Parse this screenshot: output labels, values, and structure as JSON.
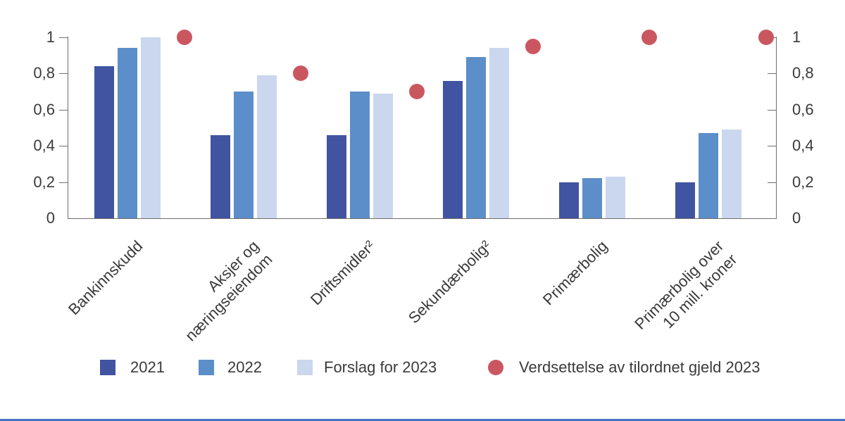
{
  "chart_data": {
    "type": "bar",
    "title": "",
    "categories": [
      "Bankinnskudd",
      "Aksjer og\nnæringseiendom",
      "Driftsmidler²",
      "Sekundærbolig²",
      "Primærbolig",
      "Primærbolig over\n10 mill. kroner"
    ],
    "series": [
      {
        "name": "2021",
        "type": "bar",
        "color": "#4154a1",
        "values": [
          0.84,
          0.46,
          0.46,
          0.76,
          0.2,
          0.2
        ]
      },
      {
        "name": "2022",
        "type": "bar",
        "color": "#5c8ec9",
        "values": [
          0.94,
          0.7,
          0.7,
          0.89,
          0.22,
          0.47
        ]
      },
      {
        "name": "Forslag for 2023",
        "type": "bar",
        "color": "#cbd7ee",
        "values": [
          1.0,
          0.79,
          0.69,
          0.94,
          0.23,
          0.49
        ]
      },
      {
        "name": "Verdsettelse av tilordnet gjeld 2023",
        "type": "scatter",
        "color": "#ca5760",
        "values": [
          1.0,
          0.8,
          0.7,
          0.95,
          1.0,
          1.0
        ]
      }
    ],
    "ylim": [
      0,
      1
    ],
    "yticks": [
      0,
      0.2,
      0.4,
      0.6,
      0.8,
      1
    ],
    "ytick_labels": [
      "0",
      "0,2",
      "0,4",
      "0,6",
      "0,8",
      "1"
    ],
    "y_axis_sides": [
      "left",
      "right"
    ],
    "grid": false,
    "legend_position": "bottom",
    "accent_colors": {
      "axis": "#6f6f6f",
      "text": "#3a3a3a",
      "bottom_rule": "#4472c4"
    }
  }
}
